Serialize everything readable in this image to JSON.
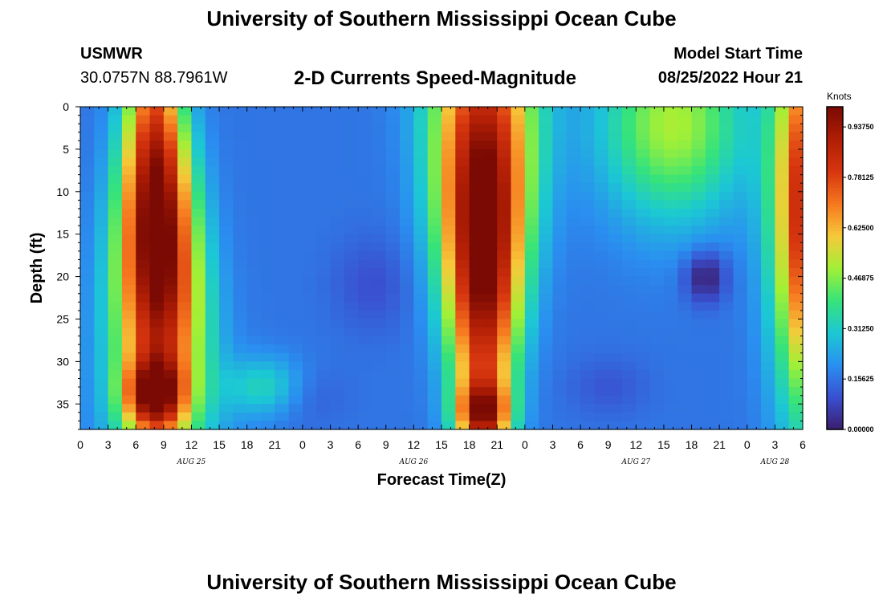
{
  "page": {
    "title": "University of Southern Mississippi Ocean Cube",
    "station_id": "USMWR",
    "station_coords": "30.0757N  88.7961W",
    "subtitle": "2-D Currents Speed-Magnitude",
    "model_label": "Model Start Time",
    "model_time": "08/25/2022 Hour 21",
    "bottom_title": "University of Southern Mississippi Ocean Cube"
  },
  "chart_data": {
    "type": "heatmap",
    "title": "2-D Currents Speed-Magnitude",
    "xlabel": "Forecast Time(Z)",
    "ylabel": "Depth (ft)",
    "x_unit": "forecast hour since 2022-08-25 00Z",
    "xlim": [
      0,
      78
    ],
    "ylim": [
      0,
      38
    ],
    "y_inverted": true,
    "x_tick_values": [
      0,
      3,
      6,
      9,
      12,
      15,
      18,
      21,
      24,
      27,
      30,
      33,
      36,
      39,
      42,
      45,
      48,
      51,
      54,
      57,
      60,
      63,
      66,
      69,
      72,
      75,
      78
    ],
    "x_tick_labels": [
      "0",
      "3",
      "6",
      "9",
      "12",
      "15",
      "18",
      "21",
      "0",
      "3",
      "6",
      "9",
      "12",
      "15",
      "18",
      "21",
      "0",
      "3",
      "6",
      "9",
      "12",
      "15",
      "18",
      "21",
      "0",
      "3",
      "6"
    ],
    "date_labels": [
      {
        "hour": 12,
        "text": "AUG 25"
      },
      {
        "hour": 36,
        "text": "AUG 26"
      },
      {
        "hour": 60,
        "text": "AUG 27"
      },
      {
        "hour": 75,
        "text": "AUG 28"
      }
    ],
    "y_tick_values": [
      0,
      5,
      10,
      15,
      20,
      25,
      30,
      35
    ],
    "y_tick_labels": [
      "0",
      "5",
      "10",
      "15",
      "20",
      "25",
      "30",
      "35"
    ],
    "colorbar": {
      "unit": "Knots",
      "min": 0.0,
      "max": 1.0,
      "tick_values": [
        0.0,
        0.15625,
        0.3125,
        0.46875,
        0.625,
        0.78125,
        0.9375
      ],
      "tick_labels": [
        "0.00000",
        "0.15625",
        "0.31250",
        "0.46875",
        "0.62500",
        "0.78125",
        "0.93750"
      ],
      "colormap": [
        "#3b1d6b",
        "#3a4fd0",
        "#2a8ff0",
        "#1cc8d4",
        "#36e37a",
        "#a2f036",
        "#f6c93a",
        "#f6781f",
        "#d7360f",
        "#b01e05",
        "#7a0a03"
      ]
    },
    "features": [
      {
        "kind": "high-speed core",
        "hour_start": 1,
        "hour_end": 16,
        "depth_top": 0,
        "depth_bottom": 38,
        "peak_hour": 7.5,
        "peak_depth": 13,
        "value": 1.0
      },
      {
        "kind": "high-speed core",
        "hour_start": 38,
        "hour_end": 50,
        "depth_top": 0,
        "depth_bottom": 38,
        "peak_hour": 43.5,
        "peak_depth": 6,
        "value": 0.98
      },
      {
        "kind": "high-speed core",
        "hour_start": 73,
        "hour_end": 78,
        "depth_top": 0,
        "depth_bottom": 38,
        "peak_hour": 78,
        "peak_depth": 10,
        "value": 0.85
      },
      {
        "kind": "moderate band",
        "hour_start": 60,
        "hour_end": 72,
        "depth_top": 0,
        "depth_bottom": 12,
        "value": 0.42
      },
      {
        "kind": "low-speed minimum",
        "hour": 67.5,
        "depth": 20,
        "value": 0.0
      },
      {
        "kind": "low-speed minimum",
        "hour": 31.5,
        "depth": 21,
        "value": 0.12
      }
    ]
  }
}
